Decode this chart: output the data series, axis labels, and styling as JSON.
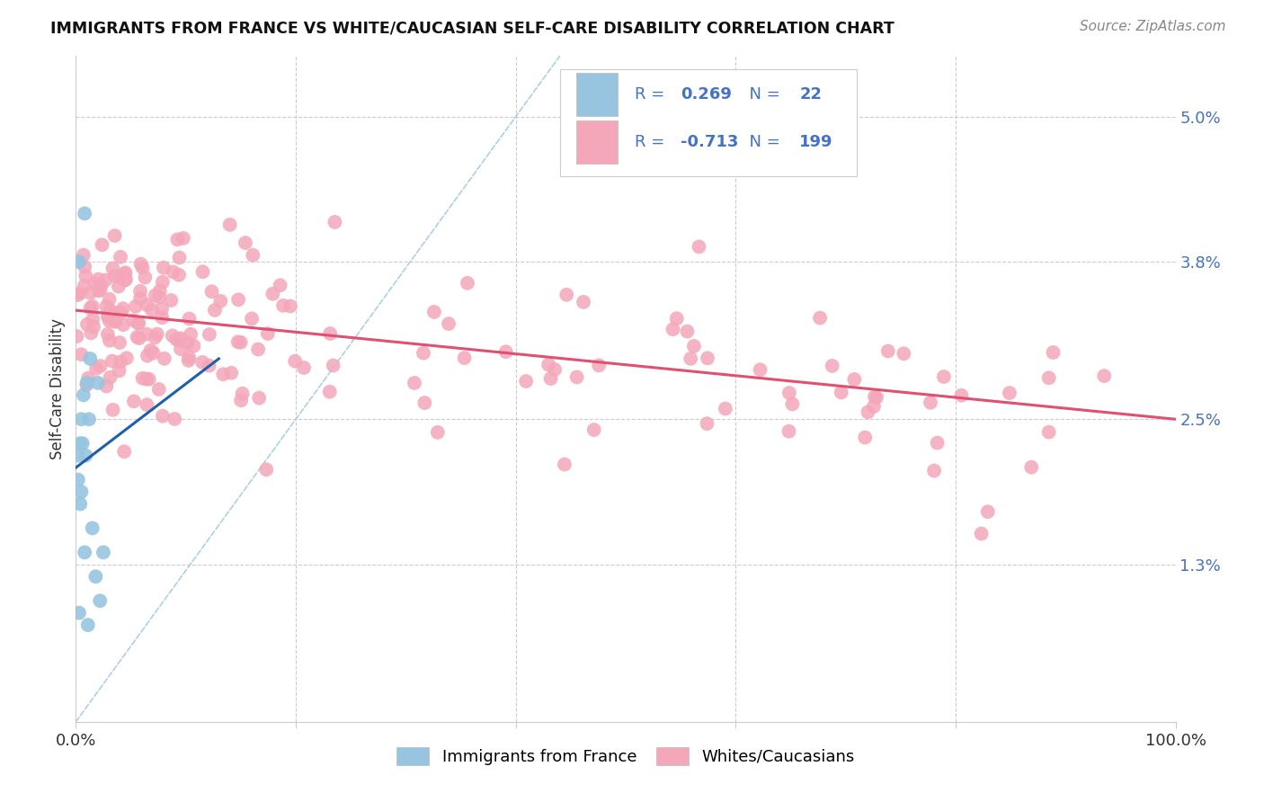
{
  "title": "IMMIGRANTS FROM FRANCE VS WHITE/CAUCASIAN SELF-CARE DISABILITY CORRELATION CHART",
  "source": "Source: ZipAtlas.com",
  "ylabel": "Self-Care Disability",
  "yticks": [
    "5.0%",
    "3.8%",
    "2.5%",
    "1.3%"
  ],
  "ytick_vals": [
    0.05,
    0.038,
    0.025,
    0.013
  ],
  "legend_r1": "R = ",
  "legend_r1_val": "0.269",
  "legend_n1": "N = ",
  "legend_n1_val": "22",
  "legend_r2": "R = ",
  "legend_r2_val": "-0.713",
  "legend_n2": "N = ",
  "legend_n2_val": "199",
  "blue_color": "#97C5E0",
  "pink_color": "#F4A7B9",
  "blue_line_color": "#2060A8",
  "pink_line_color": "#E05070",
  "background_color": "#FFFFFF",
  "grid_color": "#CCCCCC",
  "text_color_blue": "#4472C4",
  "pink_line_x": [
    0.0,
    1.0
  ],
  "pink_line_y": [
    0.034,
    0.025
  ],
  "blue_line_x": [
    0.0,
    0.13
  ],
  "blue_line_y": [
    0.021,
    0.03
  ],
  "dashed_line_x": [
    0.0,
    0.44
  ],
  "dashed_line_y": [
    0.0,
    0.055
  ],
  "xlim": [
    0.0,
    1.0
  ],
  "ylim": [
    0.0,
    0.055
  ],
  "blue_scatter_x": [
    0.005,
    0.008,
    0.003,
    0.002,
    0.004,
    0.007,
    0.01,
    0.013,
    0.012,
    0.002,
    0.005,
    0.015,
    0.025,
    0.009,
    0.006,
    0.004,
    0.018,
    0.022,
    0.003,
    0.011,
    0.008,
    0.02
  ],
  "blue_scatter_y": [
    0.025,
    0.042,
    0.038,
    0.022,
    0.023,
    0.027,
    0.028,
    0.03,
    0.025,
    0.02,
    0.019,
    0.016,
    0.014,
    0.022,
    0.023,
    0.018,
    0.012,
    0.01,
    0.009,
    0.008,
    0.014,
    0.028
  ],
  "pink_scatter_seed": 123
}
